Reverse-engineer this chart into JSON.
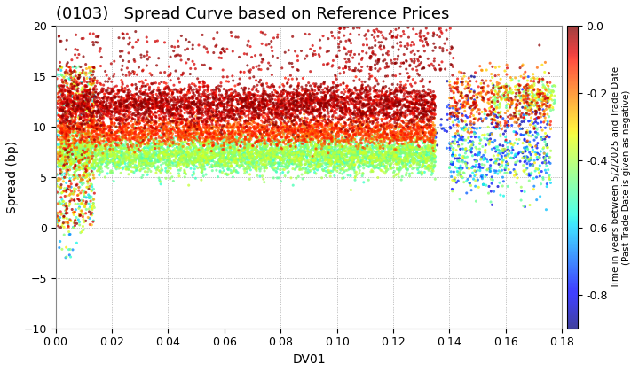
{
  "title": "(0103)   Spread Curve based on Reference Prices",
  "xlabel": "DV01",
  "ylabel": "Spread (bp)",
  "colorbar_label": "Time in years between 5/2/2025 and Trade Date\n(Past Trade Date is given as negative)",
  "xlim": [
    0.0,
    0.18
  ],
  "ylim": [
    -10.0,
    20.0
  ],
  "xticks": [
    0.0,
    0.02,
    0.04,
    0.06,
    0.08,
    0.1,
    0.12,
    0.14,
    0.16,
    0.18
  ],
  "yticks": [
    -10.0,
    -5.0,
    0.0,
    5.0,
    10.0,
    15.0,
    20.0
  ],
  "color_min": -0.9,
  "color_max": 0.0,
  "background_color": "#ffffff",
  "grid_color": "#888888",
  "title_fontsize": 13,
  "axis_label_fontsize": 10,
  "tick_fontsize": 9,
  "colorbar_tick_fontsize": 9,
  "seed": 42
}
